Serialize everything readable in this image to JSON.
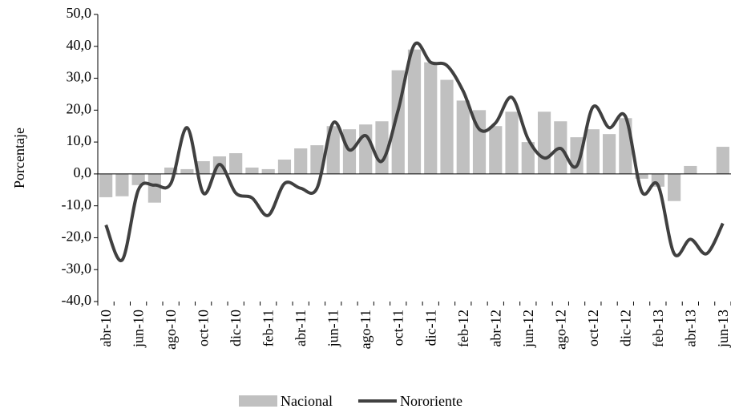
{
  "chart_data": {
    "type": "bar-line",
    "y_label": "Porcentaje",
    "categories": [
      "abr-10",
      null,
      "jun-10",
      null,
      "ago-10",
      null,
      "oct-10",
      null,
      "dic-10",
      null,
      "feb-11",
      null,
      "abr-11",
      null,
      "jun-11",
      null,
      "ago-11",
      null,
      "oct-11",
      null,
      "dic-11",
      null,
      "feb-12",
      null,
      "abr-12",
      null,
      "jun-12",
      null,
      "ago-12",
      null,
      "oct-12",
      null,
      "dic-12",
      null,
      "feb-13",
      null,
      "abr-13",
      null,
      "jun-13"
    ],
    "series": [
      {
        "name": "Nacional",
        "type": "bar",
        "color": "#c0c0c0",
        "values": [
          -7.3,
          -7.0,
          -3.5,
          -9.0,
          2.0,
          1.5,
          4.0,
          5.5,
          6.5,
          2.0,
          1.5,
          4.5,
          8.0,
          9.0,
          15.0,
          14.0,
          15.5,
          16.5,
          32.5,
          39.0,
          35.0,
          29.5,
          23.0,
          20.0,
          15.0,
          19.5,
          10.0,
          19.5,
          16.5,
          11.5,
          14.0,
          12.5,
          17.5,
          -1.5,
          -4.0,
          -8.5,
          2.5,
          0.0,
          8.5
        ]
      },
      {
        "name": "Nororiente",
        "type": "line",
        "color": "#404040",
        "values": [
          -16,
          -27,
          -5,
          -3.5,
          -3,
          14.5,
          -6,
          3,
          -6,
          -7.5,
          -13,
          -3,
          -4.5,
          -4.5,
          16,
          7.5,
          12,
          4,
          20,
          40.5,
          35,
          34,
          26,
          14,
          16,
          24,
          11,
          5,
          8,
          2.5,
          21,
          14.5,
          18,
          -5.5,
          -3.5,
          -25,
          -20.5,
          -25,
          -15.5
        ]
      }
    ],
    "ylim": [
      -40,
      50
    ],
    "yticks": [
      {
        "value": -40,
        "label": "-40,0"
      },
      {
        "value": -30,
        "label": "-30,0"
      },
      {
        "value": -20,
        "label": "-20,0"
      },
      {
        "value": -10,
        "label": "-10,0"
      },
      {
        "value": 0,
        "label": "0,0"
      },
      {
        "value": 10,
        "label": "10,0"
      },
      {
        "value": 20,
        "label": "20,0"
      },
      {
        "value": 30,
        "label": "30,0"
      },
      {
        "value": 40,
        "label": "40,0"
      },
      {
        "value": 50,
        "label": "50,0"
      }
    ],
    "legend": "bottom"
  }
}
